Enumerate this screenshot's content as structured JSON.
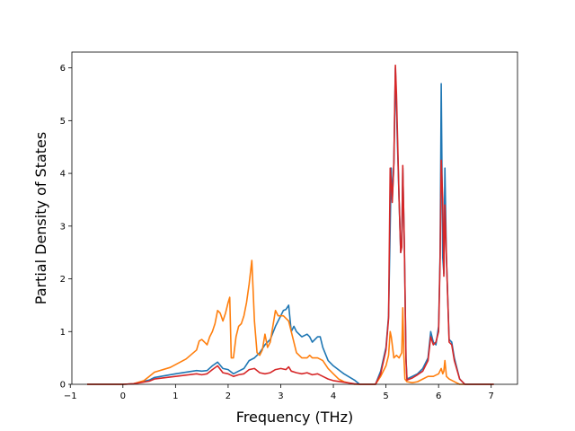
{
  "chart_data": {
    "type": "line",
    "title": "",
    "xlabel": "Frequency (THz)",
    "ylabel": "Partial Density of States",
    "xlim": [
      -0.97,
      7.5
    ],
    "ylim": [
      0,
      6.3
    ],
    "xticks": [
      -1,
      0,
      1,
      2,
      3,
      4,
      5,
      6,
      7
    ],
    "xtick_labels": [
      "−1",
      "0",
      "1",
      "2",
      "3",
      "4",
      "5",
      "6",
      "7"
    ],
    "yticks": [
      0,
      1,
      2,
      3,
      4,
      5,
      6
    ],
    "ytick_labels": [
      "0",
      "1",
      "2",
      "3",
      "4",
      "5",
      "6"
    ],
    "grid": false,
    "legend": null,
    "series": [
      {
        "color": "#1f77b4",
        "points": [
          [
            -0.68,
            0
          ],
          [
            0,
            0
          ],
          [
            0.2,
            0.01
          ],
          [
            0.5,
            0.08
          ],
          [
            0.6,
            0.13
          ],
          [
            1.0,
            0.2
          ],
          [
            1.4,
            0.26
          ],
          [
            1.5,
            0.25
          ],
          [
            1.6,
            0.26
          ],
          [
            1.7,
            0.35
          ],
          [
            1.8,
            0.42
          ],
          [
            1.9,
            0.3
          ],
          [
            2.0,
            0.28
          ],
          [
            2.1,
            0.2
          ],
          [
            2.2,
            0.25
          ],
          [
            2.3,
            0.3
          ],
          [
            2.4,
            0.45
          ],
          [
            2.5,
            0.5
          ],
          [
            2.6,
            0.6
          ],
          [
            2.7,
            0.75
          ],
          [
            2.8,
            0.85
          ],
          [
            2.9,
            1.1
          ],
          [
            3.0,
            1.3
          ],
          [
            3.05,
            1.4
          ],
          [
            3.1,
            1.42
          ],
          [
            3.15,
            1.5
          ],
          [
            3.2,
            1.0
          ],
          [
            3.25,
            1.1
          ],
          [
            3.3,
            1.0
          ],
          [
            3.4,
            0.9
          ],
          [
            3.5,
            0.95
          ],
          [
            3.55,
            0.9
          ],
          [
            3.6,
            0.8
          ],
          [
            3.7,
            0.9
          ],
          [
            3.75,
            0.9
          ],
          [
            3.8,
            0.7
          ],
          [
            3.9,
            0.45
          ],
          [
            4.0,
            0.35
          ],
          [
            4.2,
            0.2
          ],
          [
            4.4,
            0.08
          ],
          [
            4.5,
            0.0
          ],
          [
            4.8,
            0
          ],
          [
            4.9,
            0.25
          ],
          [
            5.0,
            0.7
          ],
          [
            5.05,
            1.3
          ],
          [
            5.1,
            4.1
          ],
          [
            5.12,
            3.5
          ],
          [
            5.15,
            4.2
          ],
          [
            5.18,
            6.0
          ],
          [
            5.2,
            5.2
          ],
          [
            5.25,
            3.5
          ],
          [
            5.28,
            2.5
          ],
          [
            5.3,
            2.7
          ],
          [
            5.32,
            4.1
          ],
          [
            5.35,
            2.6
          ],
          [
            5.38,
            0.5
          ],
          [
            5.4,
            0.1
          ],
          [
            5.5,
            0.15
          ],
          [
            5.6,
            0.2
          ],
          [
            5.7,
            0.3
          ],
          [
            5.75,
            0.4
          ],
          [
            5.8,
            0.5
          ],
          [
            5.85,
            1.0
          ],
          [
            5.9,
            0.8
          ],
          [
            5.95,
            0.75
          ],
          [
            6.0,
            1.1
          ],
          [
            6.03,
            2.5
          ],
          [
            6.05,
            5.7
          ],
          [
            6.08,
            2.4
          ],
          [
            6.1,
            2.1
          ],
          [
            6.12,
            4.1
          ],
          [
            6.15,
            2.4
          ],
          [
            6.2,
            0.85
          ],
          [
            6.25,
            0.8
          ],
          [
            6.3,
            0.5
          ],
          [
            6.4,
            0.1
          ],
          [
            6.5,
            0
          ],
          [
            7.05,
            0
          ]
        ]
      },
      {
        "color": "#ff7f0e",
        "points": [
          [
            -0.68,
            0
          ],
          [
            0,
            0
          ],
          [
            0.2,
            0.01
          ],
          [
            0.4,
            0.07
          ],
          [
            0.5,
            0.15
          ],
          [
            0.6,
            0.23
          ],
          [
            0.9,
            0.32
          ],
          [
            1.2,
            0.48
          ],
          [
            1.4,
            0.65
          ],
          [
            1.45,
            0.82
          ],
          [
            1.5,
            0.85
          ],
          [
            1.55,
            0.8
          ],
          [
            1.6,
            0.75
          ],
          [
            1.65,
            0.9
          ],
          [
            1.7,
            1.0
          ],
          [
            1.75,
            1.15
          ],
          [
            1.8,
            1.4
          ],
          [
            1.85,
            1.35
          ],
          [
            1.9,
            1.2
          ],
          [
            1.95,
            1.35
          ],
          [
            2.0,
            1.55
          ],
          [
            2.03,
            1.65
          ],
          [
            2.06,
            0.5
          ],
          [
            2.1,
            0.5
          ],
          [
            2.15,
            0.9
          ],
          [
            2.2,
            1.1
          ],
          [
            2.25,
            1.15
          ],
          [
            2.3,
            1.3
          ],
          [
            2.35,
            1.55
          ],
          [
            2.4,
            1.9
          ],
          [
            2.45,
            2.35
          ],
          [
            2.5,
            1.2
          ],
          [
            2.55,
            0.6
          ],
          [
            2.6,
            0.55
          ],
          [
            2.65,
            0.65
          ],
          [
            2.7,
            0.95
          ],
          [
            2.75,
            0.7
          ],
          [
            2.8,
            0.8
          ],
          [
            2.9,
            1.4
          ],
          [
            2.95,
            1.3
          ],
          [
            3.0,
            1.3
          ],
          [
            3.05,
            1.3
          ],
          [
            3.1,
            1.25
          ],
          [
            3.15,
            1.2
          ],
          [
            3.2,
            1.0
          ],
          [
            3.3,
            0.6
          ],
          [
            3.4,
            0.5
          ],
          [
            3.5,
            0.5
          ],
          [
            3.55,
            0.55
          ],
          [
            3.6,
            0.5
          ],
          [
            3.7,
            0.5
          ],
          [
            3.8,
            0.45
          ],
          [
            3.9,
            0.3
          ],
          [
            4.0,
            0.2
          ],
          [
            4.1,
            0.1
          ],
          [
            4.2,
            0.05
          ],
          [
            4.4,
            0.0
          ],
          [
            4.8,
            0
          ],
          [
            4.9,
            0.15
          ],
          [
            5.0,
            0.35
          ],
          [
            5.05,
            0.55
          ],
          [
            5.08,
            1.0
          ],
          [
            5.1,
            0.9
          ],
          [
            5.15,
            0.5
          ],
          [
            5.2,
            0.55
          ],
          [
            5.25,
            0.5
          ],
          [
            5.3,
            0.6
          ],
          [
            5.32,
            1.45
          ],
          [
            5.34,
            0.55
          ],
          [
            5.36,
            0.1
          ],
          [
            5.4,
            0.05
          ],
          [
            5.5,
            0.03
          ],
          [
            5.6,
            0.05
          ],
          [
            5.7,
            0.1
          ],
          [
            5.8,
            0.15
          ],
          [
            5.9,
            0.15
          ],
          [
            6.0,
            0.2
          ],
          [
            6.05,
            0.3
          ],
          [
            6.08,
            0.2
          ],
          [
            6.1,
            0.25
          ],
          [
            6.12,
            0.45
          ],
          [
            6.15,
            0.15
          ],
          [
            6.2,
            0.1
          ],
          [
            6.3,
            0.05
          ],
          [
            6.4,
            0.0
          ],
          [
            7.05,
            0
          ]
        ]
      },
      {
        "color": "#d62728",
        "points": [
          [
            -0.68,
            0
          ],
          [
            0,
            0
          ],
          [
            0.2,
            0.01
          ],
          [
            0.5,
            0.06
          ],
          [
            0.6,
            0.1
          ],
          [
            1.0,
            0.15
          ],
          [
            1.4,
            0.2
          ],
          [
            1.5,
            0.18
          ],
          [
            1.6,
            0.2
          ],
          [
            1.7,
            0.28
          ],
          [
            1.8,
            0.35
          ],
          [
            1.9,
            0.22
          ],
          [
            2.0,
            0.2
          ],
          [
            2.1,
            0.15
          ],
          [
            2.2,
            0.18
          ],
          [
            2.3,
            0.2
          ],
          [
            2.4,
            0.28
          ],
          [
            2.5,
            0.3
          ],
          [
            2.6,
            0.22
          ],
          [
            2.7,
            0.2
          ],
          [
            2.8,
            0.22
          ],
          [
            2.9,
            0.28
          ],
          [
            3.0,
            0.3
          ],
          [
            3.1,
            0.28
          ],
          [
            3.15,
            0.33
          ],
          [
            3.2,
            0.25
          ],
          [
            3.3,
            0.22
          ],
          [
            3.4,
            0.2
          ],
          [
            3.5,
            0.22
          ],
          [
            3.6,
            0.18
          ],
          [
            3.7,
            0.2
          ],
          [
            3.8,
            0.15
          ],
          [
            3.9,
            0.1
          ],
          [
            4.0,
            0.07
          ],
          [
            4.2,
            0.04
          ],
          [
            4.4,
            0.01
          ],
          [
            4.5,
            0.0
          ],
          [
            4.8,
            0
          ],
          [
            4.9,
            0.2
          ],
          [
            5.0,
            0.65
          ],
          [
            5.05,
            1.25
          ],
          [
            5.08,
            4.1
          ],
          [
            5.1,
            3.8
          ],
          [
            5.12,
            3.45
          ],
          [
            5.15,
            4.2
          ],
          [
            5.18,
            6.05
          ],
          [
            5.2,
            5.5
          ],
          [
            5.25,
            3.5
          ],
          [
            5.28,
            2.5
          ],
          [
            5.3,
            2.6
          ],
          [
            5.32,
            4.15
          ],
          [
            5.35,
            2.6
          ],
          [
            5.38,
            0.45
          ],
          [
            5.4,
            0.08
          ],
          [
            5.5,
            0.12
          ],
          [
            5.6,
            0.18
          ],
          [
            5.7,
            0.25
          ],
          [
            5.75,
            0.35
          ],
          [
            5.8,
            0.45
          ],
          [
            5.85,
            0.9
          ],
          [
            5.9,
            0.75
          ],
          [
            5.95,
            0.8
          ],
          [
            6.0,
            1.0
          ],
          [
            6.03,
            2.4
          ],
          [
            6.05,
            4.25
          ],
          [
            6.08,
            3.5
          ],
          [
            6.1,
            2.05
          ],
          [
            6.12,
            3.4
          ],
          [
            6.15,
            2.4
          ],
          [
            6.2,
            0.8
          ],
          [
            6.25,
            0.75
          ],
          [
            6.3,
            0.45
          ],
          [
            6.4,
            0.1
          ],
          [
            6.5,
            0
          ],
          [
            7.05,
            0
          ]
        ]
      }
    ]
  }
}
